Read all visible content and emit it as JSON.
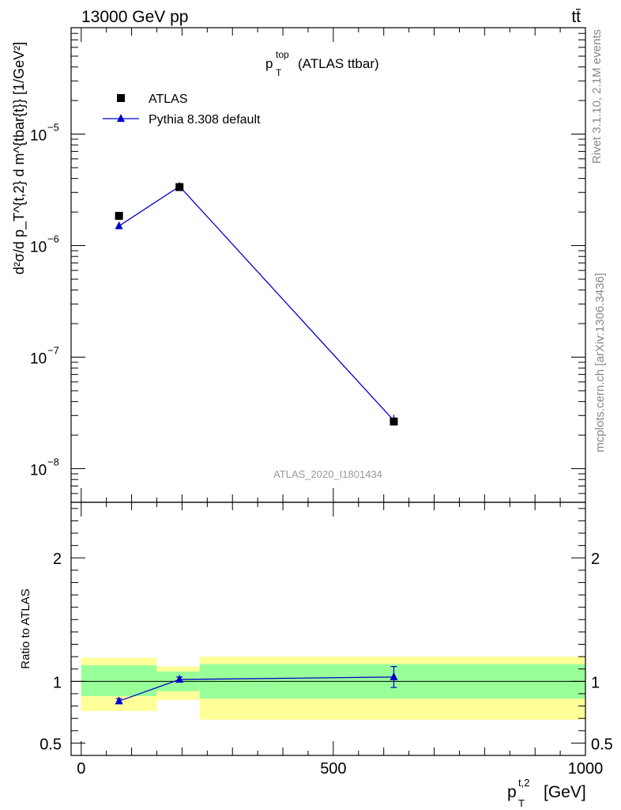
{
  "header": {
    "energy": "13000 GeV pp",
    "process": "tt̄",
    "rivet": "Rivet 3.1.10,  2.1M events",
    "mcplots": "mcplots.cern.ch [arXiv:1306.3436]",
    "analysis": "ATLAS_2020_I1801434"
  },
  "main_title": {
    "sym": "p",
    "sup": "top",
    "sub": "T",
    "rest": "(ATLAS ttbar)"
  },
  "ylabel_main": "d²σ/d p_T^{t,2} d m^{tbar{t}} [1/GeV²]",
  "ylabel_ratio": "Ratio to ATLAS",
  "xlabel": {
    "sym": "p",
    "sup": "t,2",
    "sub": "T",
    "unit": "[GeV]"
  },
  "colors": {
    "data": "#000000",
    "mc": "#0000cc",
    "band_inner": "#99ff99",
    "band_outer": "#ffff99"
  },
  "chart_data": [
    {
      "type": "scatter",
      "log_y": true,
      "xlim": [
        -20,
        1000
      ],
      "ylim": [
        5e-09,
        9e-05
      ],
      "ytick_labels": [
        {
          "value": 1e-08,
          "mant": "10",
          "exp": "−8"
        },
        {
          "value": 1e-07,
          "mant": "10",
          "exp": "−7"
        },
        {
          "value": 1e-06,
          "mant": "10",
          "exp": "−6"
        },
        {
          "value": 1e-05,
          "mant": "10",
          "exp": "−5"
        }
      ],
      "legend_position": "top-left",
      "series": [
        {
          "name": "ATLAS",
          "marker": "square",
          "x": [
            75,
            195,
            620
          ],
          "y": [
            1.85e-06,
            3.35e-06,
            2.65e-08
          ],
          "yerr_low": [
            0,
            0,
            0
          ],
          "yerr_high": [
            0,
            0,
            0
          ]
        },
        {
          "name": "Pythia 8.308 default",
          "marker": "triangle",
          "x": [
            75,
            195,
            620
          ],
          "y": [
            1.5e-06,
            3.4e-06,
            2.7e-08
          ],
          "yerr_low": [
            6e-08,
            1e-07,
            2.5e-09
          ],
          "yerr_high": [
            6e-08,
            1e-07,
            3.5e-09
          ]
        }
      ]
    },
    {
      "type": "line",
      "xlim": [
        -20,
        1000
      ],
      "ylim": [
        0.4,
        2.45
      ],
      "x_ticks": [
        0,
        500,
        1000
      ],
      "x_tick_labels": [
        "0",
        "500",
        "1000"
      ],
      "y_ticks": [
        0.5,
        1,
        2
      ],
      "y_tick_labels": [
        "0.5",
        "1",
        "2"
      ],
      "reference_line": 1,
      "bands": [
        {
          "x0": 0,
          "x1": 150,
          "inner": [
            0.88,
            1.13
          ],
          "outer": [
            0.76,
            1.19
          ]
        },
        {
          "x0": 150,
          "x1": 235,
          "inner": [
            0.92,
            1.08
          ],
          "outer": [
            0.85,
            1.12
          ]
        },
        {
          "x0": 235,
          "x1": 1000,
          "inner": [
            0.86,
            1.14
          ],
          "outer": [
            0.69,
            1.2
          ]
        }
      ],
      "series": [
        {
          "name": "Pythia 8.308 default",
          "x": [
            75,
            195,
            620
          ],
          "y": [
            0.84,
            1.015,
            1.035
          ],
          "yerr": [
            0.02,
            0.02,
            0.085
          ]
        }
      ]
    }
  ]
}
